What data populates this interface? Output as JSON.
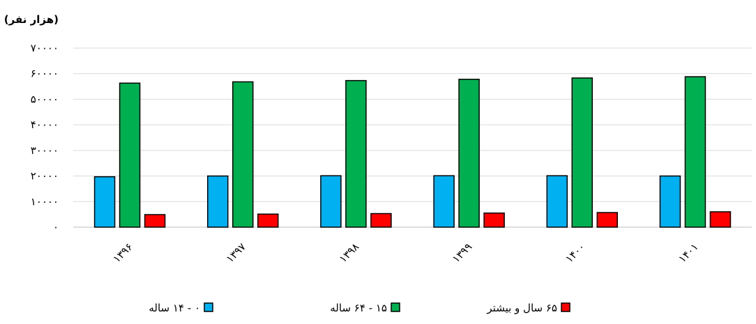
{
  "chart_data": {
    "type": "bar",
    "ylabel": "(هزار نفر)",
    "ylim": [
      0,
      70000
    ],
    "yticks": [
      0,
      10000,
      20000,
      30000,
      40000,
      50000,
      60000,
      70000
    ],
    "ytick_labels": [
      "۰",
      "۱۰۰۰۰",
      "۲۰۰۰۰",
      "۳۰۰۰۰",
      "۴۰۰۰۰",
      "۵۰۰۰۰",
      "۶۰۰۰۰",
      "۷۰۰۰۰"
    ],
    "categories": [
      "۱۳۹۶",
      "۱۳۹۷",
      "۱۳۹۸",
      "۱۳۹۹",
      "۱۴۰۰",
      "۱۴۰۱"
    ],
    "grid": true,
    "legend_position": "bottom",
    "series": [
      {
        "name": "۰ - ۱۴ ساله",
        "color": "#00b0f0",
        "values": [
          19700,
          20000,
          20100,
          20100,
          20100,
          20000
        ]
      },
      {
        "name": "۱۵ - ۶۴ ساله",
        "color": "#00b050",
        "values": [
          56300,
          56800,
          57300,
          57800,
          58300,
          58800
        ]
      },
      {
        "name": "۶۵ سال و بیشتر",
        "color": "#ff0000",
        "values": [
          4900,
          5100,
          5300,
          5500,
          5700,
          6000
        ]
      }
    ]
  }
}
